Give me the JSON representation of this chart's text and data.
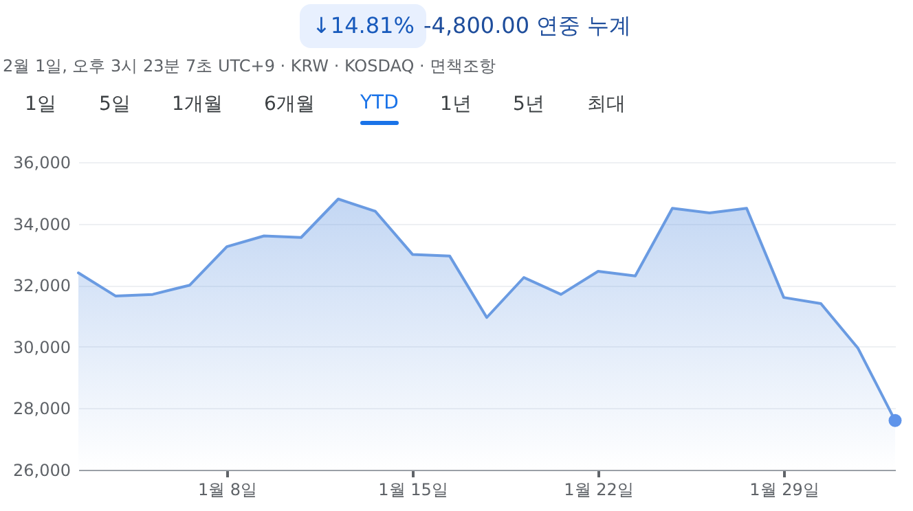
{
  "chart_data": {
    "type": "area",
    "title": "↓14.81%",
    "subtitle": "-4,800.00 연중 누계",
    "annotations": [
      "2월 1일, 오후 3시 23분 7초 UTC+9 · KRW · KOSDAQ · 면책조항",
      "1일",
      "5일",
      "1개월",
      "6개월",
      "YTD",
      "1년",
      "5년",
      "최대"
    ],
    "categories": [
      null,
      null,
      null,
      null,
      "1월 8일",
      null,
      null,
      null,
      null,
      "1월 15일",
      null,
      null,
      null,
      null,
      "1월 22일",
      null,
      null,
      null,
      null,
      "1월 29일",
      null,
      null,
      null
    ],
    "series": [
      {
        "color": "#6a9be2",
        "values": [
          32400,
          31650,
          31700,
          32000,
          33250,
          33600,
          33550,
          34800,
          34400,
          33000,
          32950,
          30950,
          32250,
          31700,
          32450,
          32300,
          34500,
          34350,
          34500,
          31600,
          31400,
          29950,
          27600
        ]
      },
      {
        "type": "scatter",
        "color": "#5f94ea",
        "values": [
          null,
          null,
          null,
          null,
          null,
          null,
          null,
          null,
          null,
          null,
          null,
          null,
          null,
          null,
          null,
          null,
          null,
          null,
          null,
          null,
          null,
          null,
          27600
        ]
      }
    ],
    "ylim": [
      26000,
      36000
    ],
    "yticks": [
      {
        "value": 26000,
        "label": "26,000"
      },
      {
        "value": 28000,
        "label": "28,000"
      },
      {
        "value": 30000,
        "label": "30,000"
      },
      {
        "value": 32000,
        "label": "32,000"
      },
      {
        "value": 34000,
        "label": "34,000"
      },
      {
        "value": 36000,
        "label": "36,000"
      }
    ],
    "grid": "y"
  }
}
